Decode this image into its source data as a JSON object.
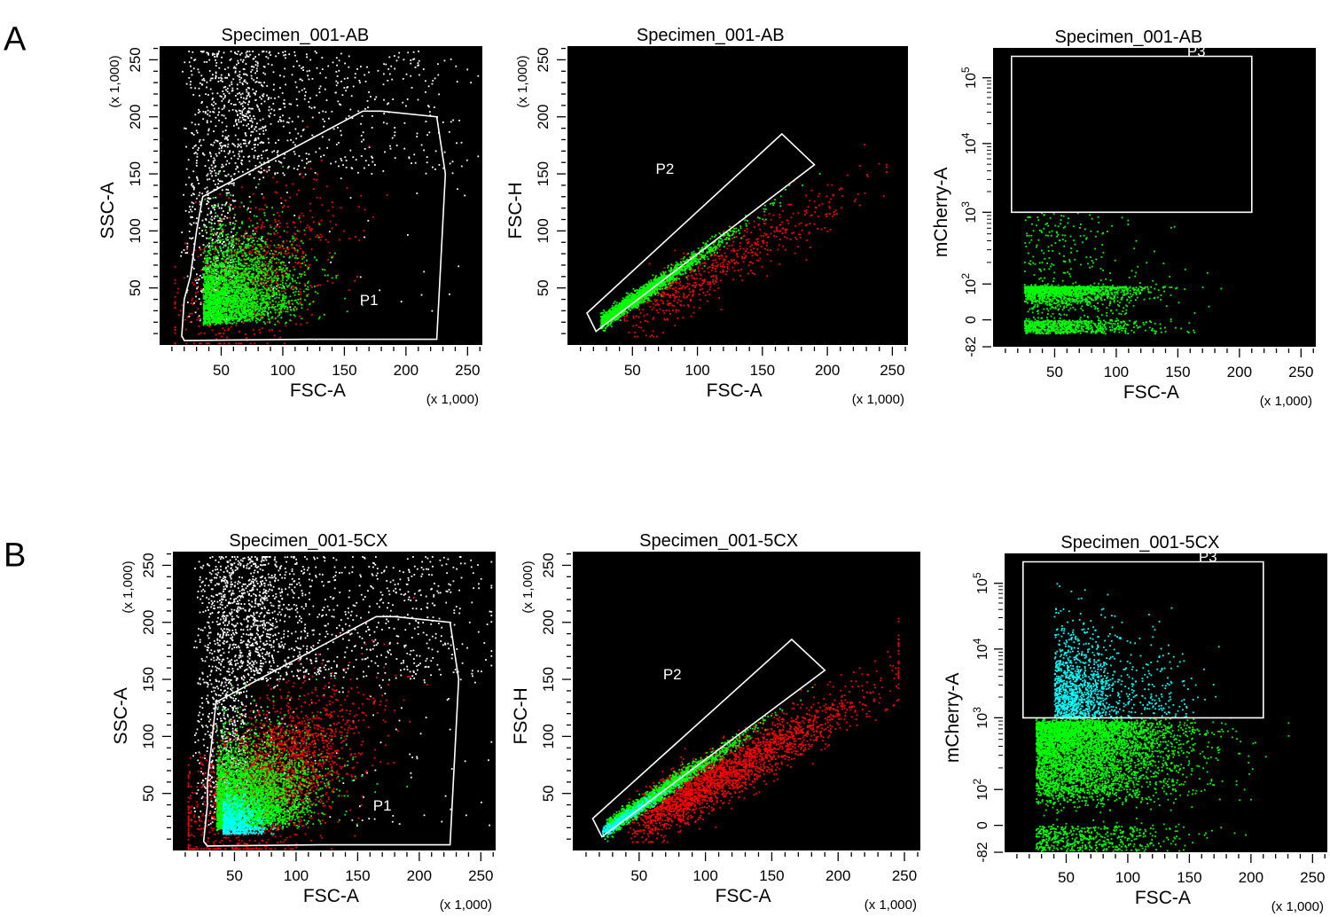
{
  "figure": {
    "panel_labels": [
      "A",
      "B"
    ]
  },
  "chart_data": [
    {
      "type": "scatter",
      "panel": "A",
      "title": "Specimen_001-AB",
      "xlabel": "FSC-A",
      "ylabel": "SSC-A",
      "xscale": "linear",
      "yscale": "linear",
      "xlim": [
        0,
        262
      ],
      "ylim": [
        0,
        262
      ],
      "xticks": [
        50,
        100,
        150,
        200,
        250
      ],
      "yticks": [
        50,
        100,
        150,
        200,
        250
      ],
      "xmultiplier": "(x 1,000)",
      "ymultiplier": "(x 1,000)",
      "gate": {
        "name": "P1",
        "label_at": [
          170,
          35
        ],
        "vertices": [
          [
            20,
            40
          ],
          [
            18,
            8
          ],
          [
            20,
            4
          ],
          [
            120,
            5
          ],
          [
            225,
            5
          ],
          [
            232,
            150
          ],
          [
            225,
            200
          ],
          [
            180,
            205
          ],
          [
            165,
            205
          ],
          [
            35,
            130
          ],
          [
            30,
            100
          ],
          [
            25,
            60
          ]
        ]
      },
      "colors": {
        "ungated": "#ffffff",
        "gated": "#00ff00",
        "p1_only": "#ff0000",
        "p3": "#00ffff"
      },
      "populations": [
        {
          "color": "ungated",
          "count": 1400,
          "kind": "white"
        },
        {
          "color": "p1_only",
          "count": 700,
          "kind": "red"
        },
        {
          "color": "gated",
          "count": 2600,
          "kind": "green"
        }
      ]
    },
    {
      "type": "scatter",
      "panel": "A",
      "title": "Specimen_001-AB",
      "xlabel": "FSC-A",
      "ylabel": "FSC-H",
      "xscale": "linear",
      "yscale": "linear",
      "xlim": [
        0,
        262
      ],
      "ylim": [
        0,
        262
      ],
      "xticks": [
        50,
        100,
        150,
        200,
        250
      ],
      "yticks": [
        50,
        100,
        150,
        200,
        250
      ],
      "xmultiplier": "(x 1,000)",
      "ymultiplier": "(x 1,000)",
      "gate": {
        "name": "P2",
        "label_at": [
          75,
          150
        ],
        "vertices": [
          [
            15,
            28
          ],
          [
            165,
            185
          ],
          [
            190,
            158
          ],
          [
            22,
            12
          ]
        ]
      },
      "colors": {
        "ungated": "#ffffff",
        "gated": "#00ff00",
        "p1_only": "#ff0000",
        "p3": "#00ffff"
      },
      "populations": [
        {
          "color": "p1_only",
          "count": 650,
          "kind": "red"
        },
        {
          "color": "gated",
          "count": 1800,
          "kind": "green"
        }
      ]
    },
    {
      "type": "scatter",
      "panel": "A",
      "title": "Specimen_001-AB",
      "xlabel": "FSC-A",
      "ylabel": "mCherry-A",
      "xscale": "linear",
      "yscale": "biexponential",
      "xlim": [
        0,
        262
      ],
      "ylim": [
        -82,
        262144
      ],
      "xticks": [
        50,
        100,
        150,
        200,
        250
      ],
      "yticks": [
        "-82",
        "0",
        "10^2",
        "10^3",
        "10^4",
        "10^5"
      ],
      "xmultiplier": "(x 1,000)",
      "gate": {
        "name": "P3",
        "label_at": [
          165,
          200000
        ],
        "vertices": [
          [
            15,
            1000
          ],
          [
            15,
            200000
          ],
          [
            210,
            200000
          ],
          [
            210,
            1000
          ]
        ]
      },
      "colors": {
        "ungated": "#ffffff",
        "gated": "#00ff00",
        "p1_only": "#ff0000",
        "p3": "#00ffff"
      },
      "populations": [
        {
          "color": "gated",
          "count": 2300,
          "kind": "green"
        }
      ]
    },
    {
      "type": "scatter",
      "panel": "B",
      "title": "Specimen_001-5CX",
      "xlabel": "FSC-A",
      "ylabel": "SSC-A",
      "xscale": "linear",
      "yscale": "linear",
      "xlim": [
        0,
        262
      ],
      "ylim": [
        0,
        262
      ],
      "xticks": [
        50,
        100,
        150,
        200,
        250
      ],
      "yticks": [
        50,
        100,
        150,
        200,
        250
      ],
      "xmultiplier": "(x 1,000)",
      "ymultiplier": "(x 1,000)",
      "gate": {
        "name": "P1",
        "label_at": [
          170,
          35
        ],
        "vertices": [
          [
            28,
            40
          ],
          [
            25,
            8
          ],
          [
            28,
            4
          ],
          [
            120,
            5
          ],
          [
            225,
            5
          ],
          [
            232,
            150
          ],
          [
            225,
            200
          ],
          [
            180,
            205
          ],
          [
            165,
            205
          ],
          [
            35,
            130
          ],
          [
            32,
            100
          ],
          [
            28,
            60
          ]
        ]
      },
      "colors": {
        "ungated": "#ffffff",
        "gated": "#00ff00",
        "p1_only": "#ff0000",
        "p3": "#00ffff"
      },
      "populations": [
        {
          "color": "ungated",
          "count": 2400,
          "kind": "white"
        },
        {
          "color": "p1_only",
          "count": 2400,
          "kind": "red"
        },
        {
          "color": "gated",
          "count": 3400,
          "kind": "green"
        },
        {
          "color": "p3",
          "count": 700,
          "kind": "cyan"
        }
      ]
    },
    {
      "type": "scatter",
      "panel": "B",
      "title": "Specimen_001-5CX",
      "xlabel": "FSC-A",
      "ylabel": "FSC-H",
      "xscale": "linear",
      "yscale": "linear",
      "xlim": [
        0,
        262
      ],
      "ylim": [
        0,
        262
      ],
      "xticks": [
        50,
        100,
        150,
        200,
        250
      ],
      "yticks": [
        50,
        100,
        150,
        200,
        250
      ],
      "xmultiplier": "(x 1,000)",
      "ymultiplier": "(x 1,000)",
      "gate": {
        "name": "P2",
        "label_at": [
          75,
          150
        ],
        "vertices": [
          [
            15,
            28
          ],
          [
            165,
            185
          ],
          [
            190,
            158
          ],
          [
            22,
            12
          ]
        ]
      },
      "colors": {
        "ungated": "#ffffff",
        "gated": "#00ff00",
        "p1_only": "#ff0000",
        "p3": "#00ffff"
      },
      "populations": [
        {
          "color": "p1_only",
          "count": 2600,
          "kind": "red"
        },
        {
          "color": "gated",
          "count": 1900,
          "kind": "green"
        },
        {
          "color": "p3",
          "count": 350,
          "kind": "cyan"
        }
      ]
    },
    {
      "type": "scatter",
      "panel": "B",
      "title": "Specimen_001-5CX",
      "xlabel": "FSC-A",
      "ylabel": "mCherry-A",
      "xscale": "linear",
      "yscale": "biexponential",
      "xlim": [
        0,
        262
      ],
      "ylim": [
        -82,
        262144
      ],
      "xticks": [
        50,
        100,
        150,
        200,
        250
      ],
      "yticks": [
        "-82",
        "0",
        "10^2",
        "10^3",
        "10^4",
        "10^5"
      ],
      "xmultiplier": "(x 1,000)",
      "gate": {
        "name": "P3",
        "label_at": [
          165,
          200000
        ],
        "vertices": [
          [
            15,
            1000
          ],
          [
            15,
            200000
          ],
          [
            210,
            200000
          ],
          [
            210,
            1000
          ]
        ]
      },
      "colors": {
        "ungated": "#ffffff",
        "gated": "#00ff00",
        "p1_only": "#ff0000",
        "p3": "#00ffff"
      },
      "populations": [
        {
          "color": "gated",
          "count": 5200,
          "kind": "green"
        },
        {
          "color": "p3",
          "count": 1300,
          "kind": "cyan"
        }
      ]
    }
  ]
}
